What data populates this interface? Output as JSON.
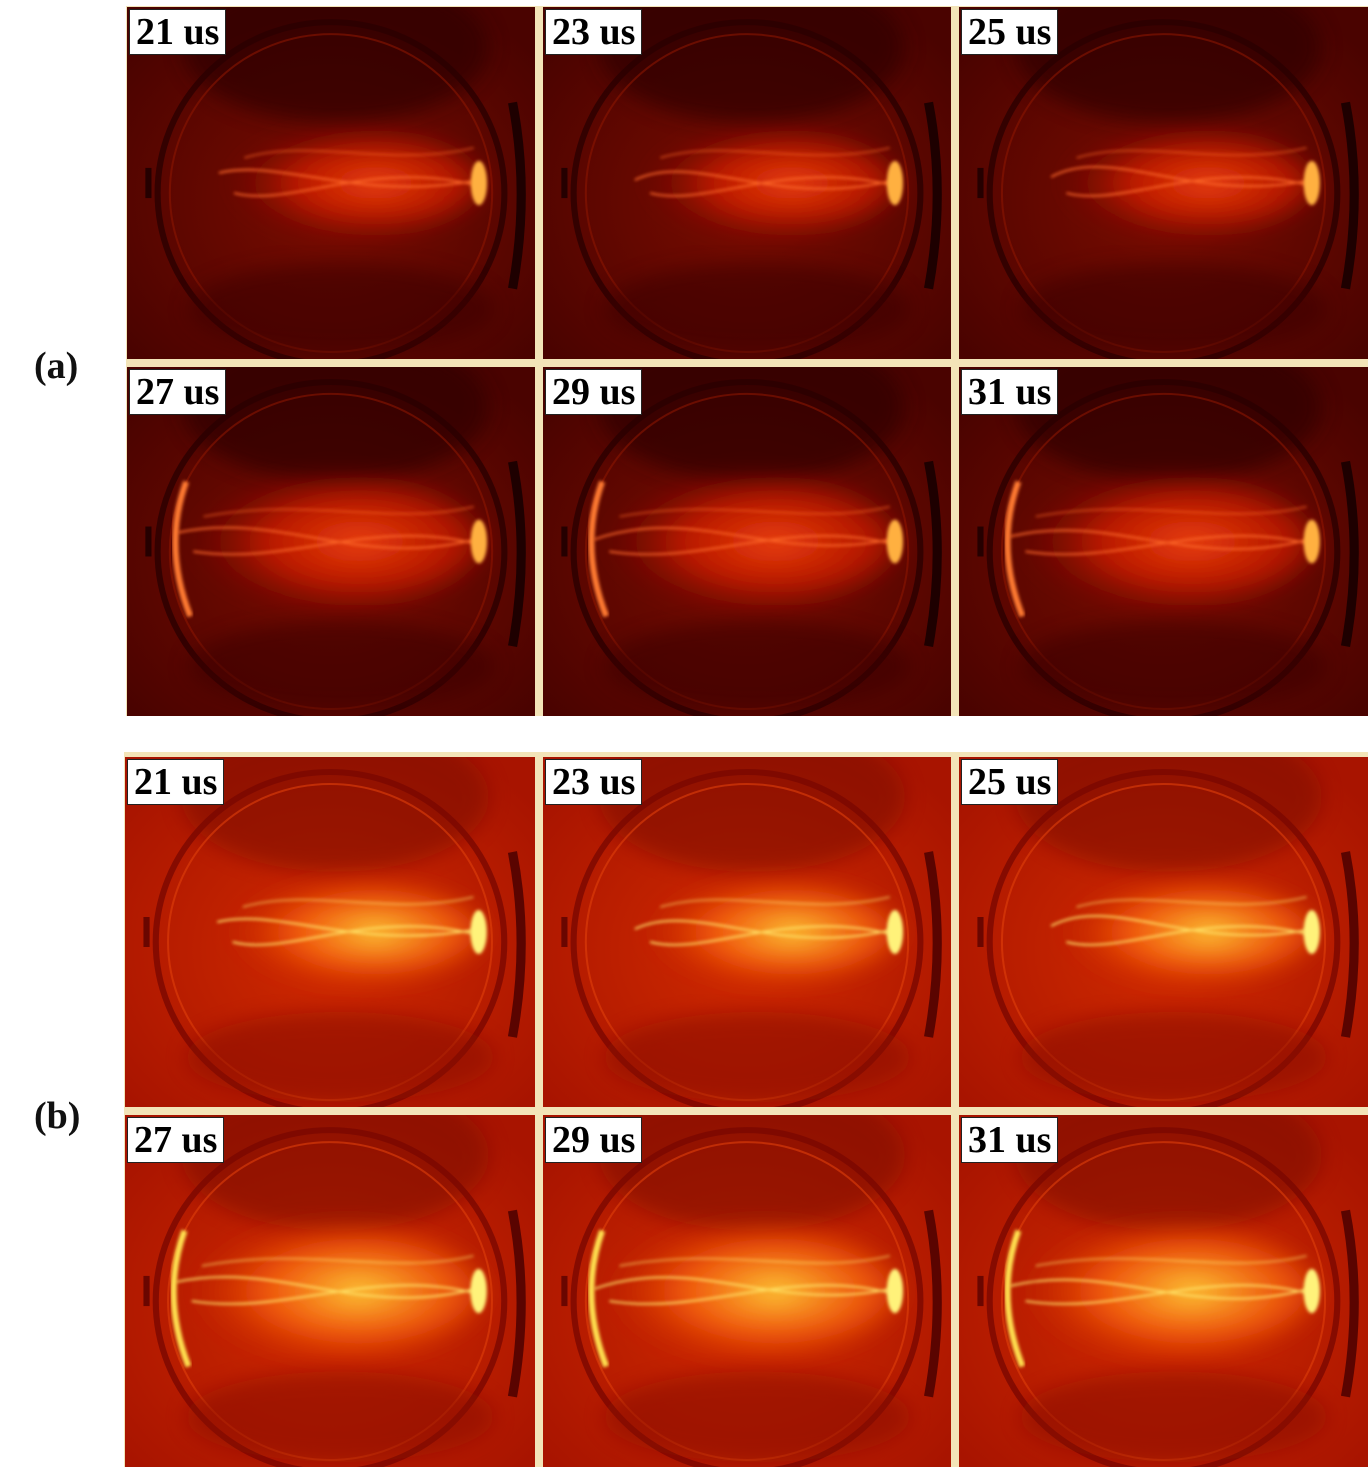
{
  "panels": [
    {
      "label": "(a)",
      "theme": "dark",
      "frames": [
        {
          "time": "21 us"
        },
        {
          "time": "23 us"
        },
        {
          "time": "25 us"
        },
        {
          "time": "27 us"
        },
        {
          "time": "29 us"
        },
        {
          "time": "31 us"
        }
      ]
    },
    {
      "label": "(b)",
      "theme": "bright",
      "frames": [
        {
          "time": "21 us"
        },
        {
          "time": "23 us"
        },
        {
          "time": "25 us"
        },
        {
          "time": "27 us"
        },
        {
          "time": "29 us"
        },
        {
          "time": "31 us"
        }
      ]
    }
  ],
  "colors": {
    "separator": "#f3e4b8",
    "dark_bg": "#5a0600",
    "bright_bg": "#b81a00",
    "plasma_hot": "#ffe14a"
  }
}
